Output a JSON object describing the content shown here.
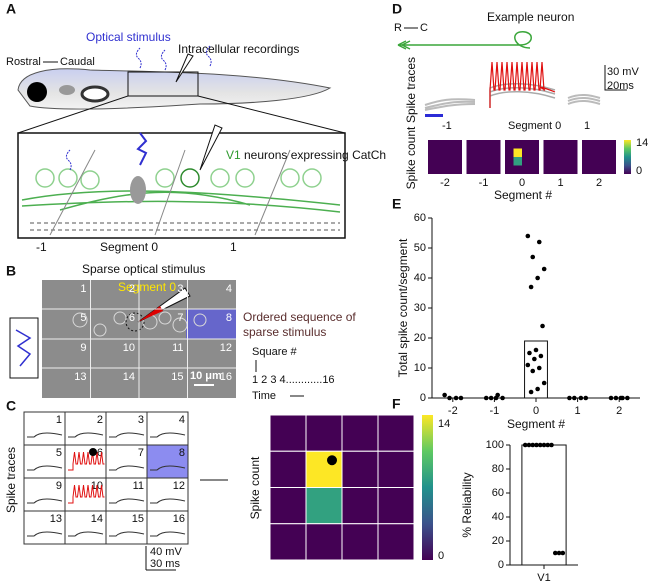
{
  "panels": {
    "A": {
      "label": "A",
      "stimulus": "Optical stimulus",
      "recordings": "Intracellular recordings",
      "rostral": "Rostral",
      "caudal": "Caudal",
      "neurons_name": "V1",
      "neurons_text": "neurons expressing CatCh",
      "segments": [
        "-1",
        "Segment 0",
        "1"
      ]
    },
    "B": {
      "label": "B",
      "title": "Sparse optical stimulus",
      "segment": "Segment 0",
      "squares": [
        1,
        2,
        3,
        4,
        5,
        6,
        7,
        8,
        9,
        10,
        11,
        12,
        13,
        14,
        15,
        16
      ],
      "scale": "10 μm",
      "sequence": [
        "Ordered sequence of",
        "sparse stimulus"
      ],
      "square_label": "Square #",
      "order": "1    2    3    4............16",
      "time": "Time"
    },
    "C": {
      "label": "C",
      "traces_label": "Spike traces",
      "squares": [
        1,
        2,
        3,
        4,
        5,
        6,
        7,
        8,
        9,
        10,
        11,
        12,
        13,
        14,
        15,
        16
      ],
      "scale_mv": "40 mV",
      "scale_ms": "30 ms",
      "count_label": "Spike count",
      "counts": [
        0,
        0,
        0,
        0,
        0,
        14,
        0,
        0,
        0,
        8,
        0,
        0,
        0,
        0,
        0,
        0
      ],
      "colorbar_ticks": [
        0,
        14
      ]
    },
    "D": {
      "label": "D",
      "rostral": "R",
      "caudal": "C",
      "title": "Example neuron",
      "traces_label": "Spike traces",
      "scale_mv": "30 mV",
      "scale_ms": "20ms",
      "trace_segments": [
        "-1",
        "Segment 0",
        "1"
      ],
      "count_label": "Spike count",
      "segments": [
        "-2",
        "-1",
        "0",
        "1",
        "2"
      ],
      "segment_axis": "Segment #",
      "counts": [
        [
          0,
          0,
          0,
          0,
          0,
          0,
          0,
          0,
          0,
          0,
          0,
          0,
          0,
          0,
          0,
          0
        ],
        [
          0,
          0,
          0,
          0,
          0,
          0,
          0,
          0,
          0,
          0,
          0,
          0,
          0,
          0,
          0,
          0
        ],
        [
          0,
          0,
          0,
          0,
          0,
          14,
          0,
          0,
          0,
          8,
          0,
          0,
          0,
          0,
          0,
          0
        ],
        [
          0,
          0,
          0,
          0,
          0,
          0,
          0,
          0,
          0,
          0,
          0,
          0,
          0,
          0,
          0,
          0
        ],
        [
          0,
          0,
          0,
          0,
          0,
          0,
          0,
          0,
          0,
          0,
          0,
          0,
          0,
          0,
          0,
          0
        ]
      ],
      "colorbar_ticks": [
        0,
        14
      ]
    }
  },
  "chart_data": [
    {
      "panel": "E",
      "type": "bar",
      "ylabel": "Total spike count/segment",
      "xlabel": "Segment #",
      "categories": [
        "-2",
        "-1",
        "0",
        "1",
        "2"
      ],
      "values": [
        0,
        0,
        19,
        0,
        0
      ],
      "points": [
        [
          1,
          0,
          0,
          0
        ],
        [
          0,
          1,
          0,
          0,
          0
        ],
        [
          54,
          52,
          47,
          43,
          40,
          37,
          24,
          16,
          15,
          14,
          13,
          11,
          10,
          9,
          5,
          3,
          2
        ],
        [
          0,
          0,
          0,
          0
        ],
        [
          0,
          0,
          0,
          0,
          0
        ]
      ],
      "ylim": [
        0,
        60
      ],
      "yticks": [
        0,
        10,
        20,
        30,
        40,
        50,
        60
      ]
    },
    {
      "panel": "F",
      "type": "bar",
      "ylabel": "% Reliability",
      "categories": [
        "V1"
      ],
      "values": [
        100
      ],
      "points": [
        [
          100,
          100,
          100,
          100,
          100,
          100,
          100,
          100,
          10,
          10,
          10
        ]
      ],
      "ylim": [
        0,
        100
      ],
      "yticks": [
        0,
        20,
        40,
        60,
        80,
        100
      ]
    }
  ]
}
